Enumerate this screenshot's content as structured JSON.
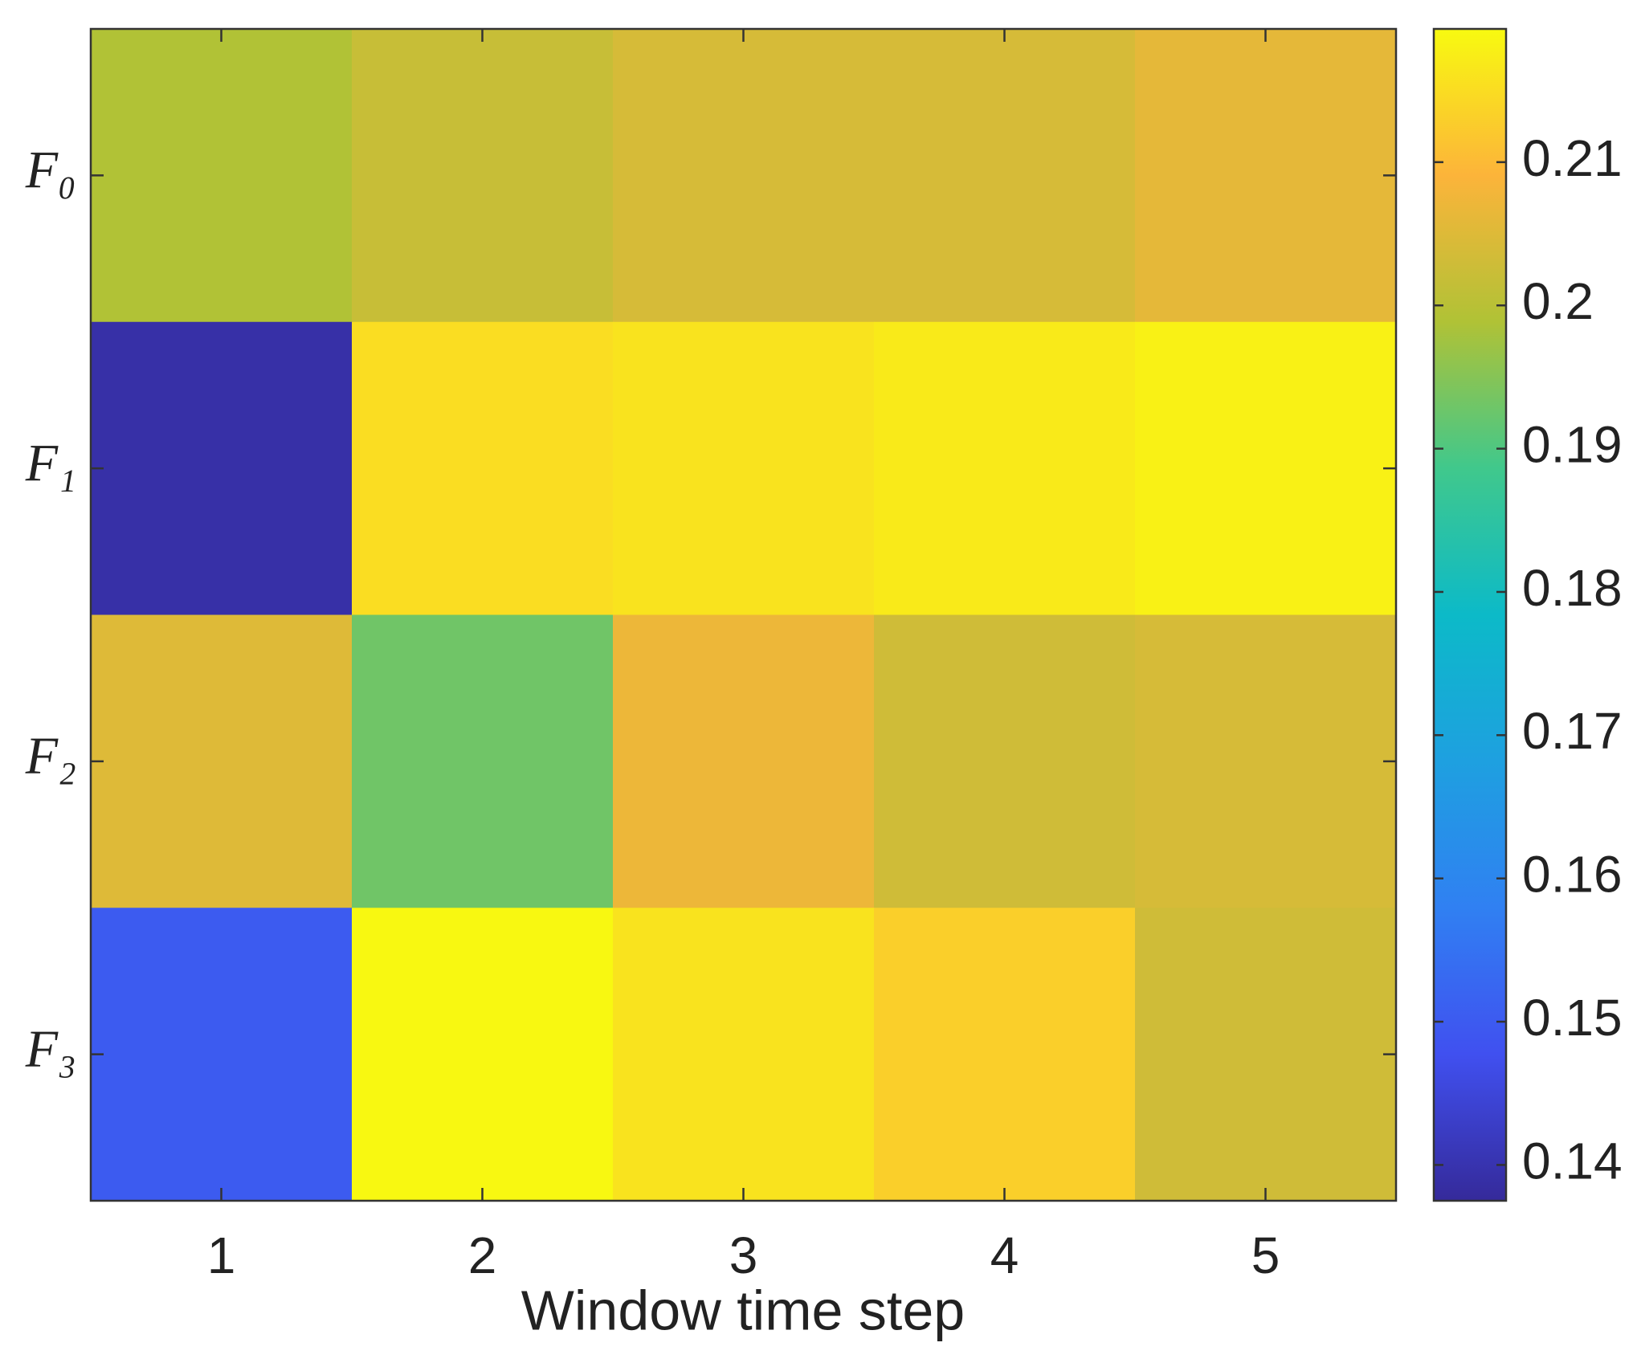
{
  "chart_data": {
    "type": "heatmap",
    "xlabel": "Window time step",
    "x_categories": [
      "1",
      "2",
      "3",
      "4",
      "5"
    ],
    "y_categories": [
      "F₀",
      "F₁",
      "F₂",
      "F₃"
    ],
    "values": [
      [
        0.199,
        0.202,
        0.204,
        0.204,
        0.206
      ],
      [
        0.139,
        0.215,
        0.216,
        0.217,
        0.218
      ],
      [
        0.205,
        0.193,
        0.207,
        0.203,
        0.204
      ],
      [
        0.15,
        0.219,
        0.216,
        0.213,
        0.203
      ]
    ],
    "clim": [
      0.1375,
      0.2193
    ],
    "colorbar_ticks": [
      0.14,
      0.15,
      0.16,
      0.17,
      0.18,
      0.19,
      0.2,
      0.21
    ],
    "colormap": [
      "#352a9a",
      "#4050f0",
      "#3080f2",
      "#1ea0e0",
      "#0cbac8",
      "#40c88c",
      "#b0c236",
      "#fcb43a",
      "#f8fa10"
    ]
  }
}
